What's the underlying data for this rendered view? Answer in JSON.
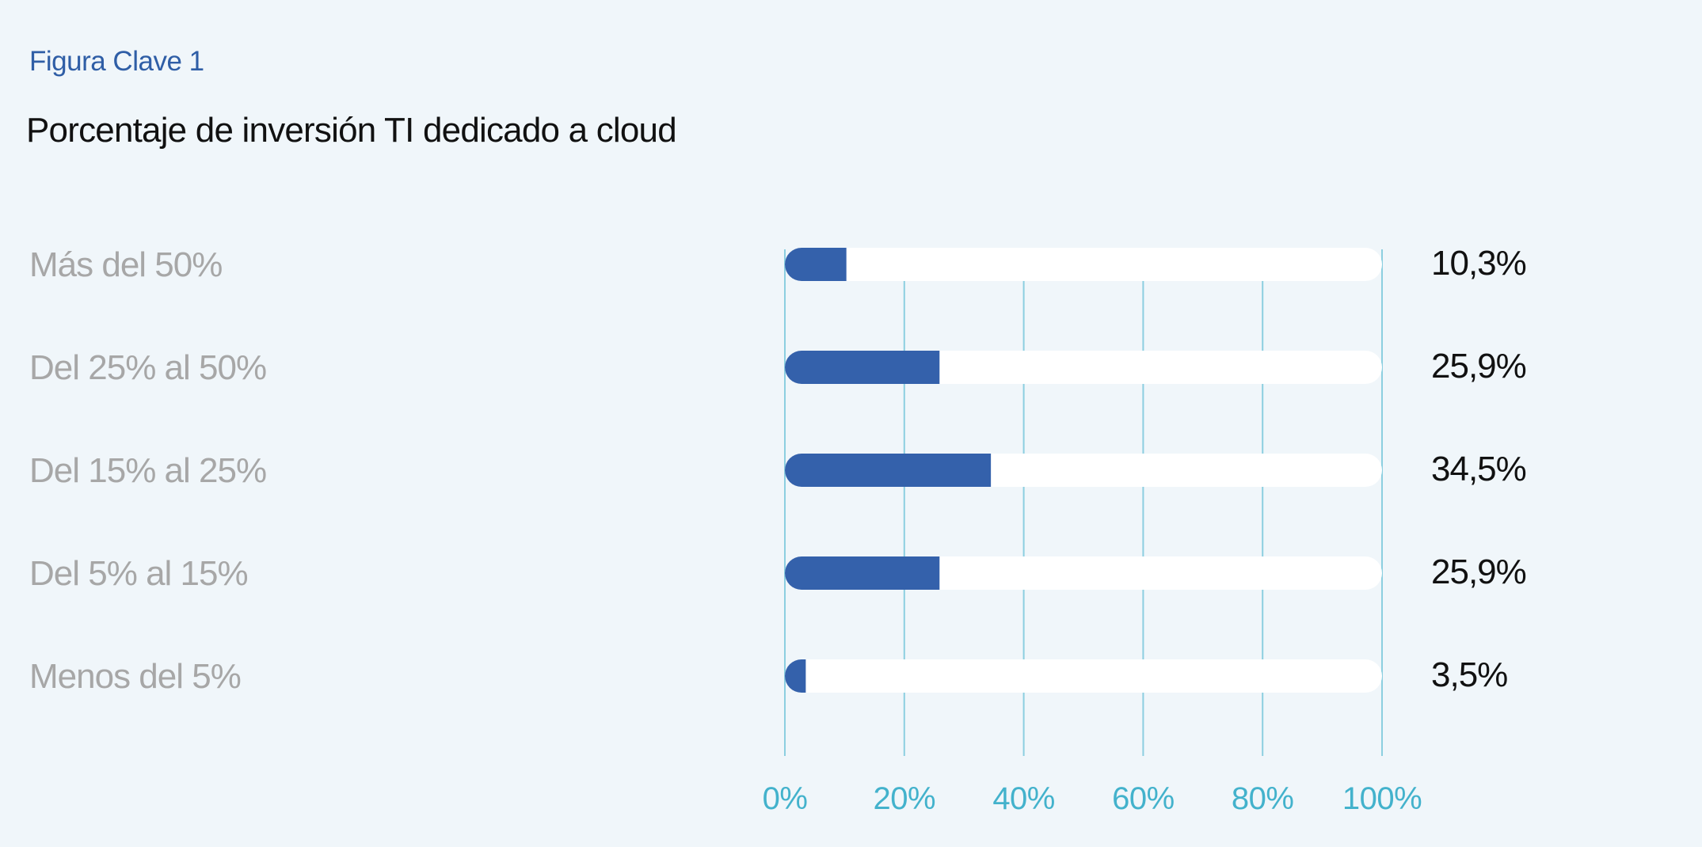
{
  "figure_label": "Figura Clave 1",
  "chart_data": {
    "type": "bar",
    "orientation": "horizontal",
    "title": "Porcentaje  de inversión TI dedicado a cloud",
    "categories": [
      "Más del 50%",
      "Del 25% al 50%",
      "Del 15% al 25%",
      "Del 5% al 15%",
      "Menos del 5%"
    ],
    "values": [
      10.3,
      25.9,
      34.5,
      25.9,
      3.5
    ],
    "value_labels": [
      "10,3%",
      "25,9%",
      "34,5%",
      "25,9%",
      "3,5%"
    ],
    "x_ticks": [
      0,
      20,
      40,
      60,
      80,
      100
    ],
    "x_tick_labels": [
      "0%",
      "20%",
      "40%",
      "60%",
      "80%",
      "100%"
    ],
    "xlim": [
      0,
      100
    ],
    "grid": "vertical",
    "xlabel": "",
    "ylabel": "",
    "colors": {
      "bar": "#3461ab",
      "track": "#ffffff",
      "grid": "#8ccfe0",
      "tick_text": "#43b2cc",
      "category_text": "#a7a7a7",
      "value_text": "#111111",
      "figure_label": "#2f5ea6",
      "background": "#f0f6fa"
    }
  }
}
